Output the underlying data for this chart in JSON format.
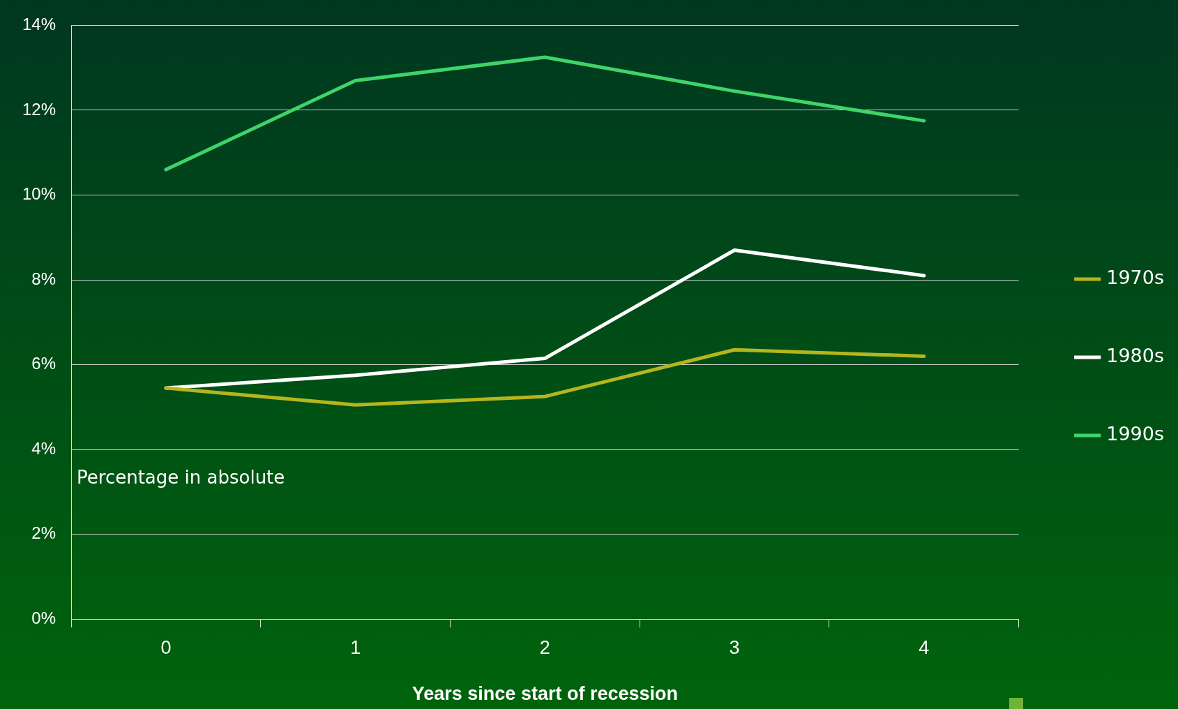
{
  "chart_data": {
    "type": "line",
    "xlabel": "Years since start of recession",
    "ylabel": "Percentage in absolute",
    "categories": [
      "0",
      "1",
      "2",
      "3",
      "4"
    ],
    "series": [
      {
        "name": "1970s",
        "color": "#b5b51e",
        "values": [
          5.45,
          5.05,
          5.25,
          6.35,
          6.2
        ]
      },
      {
        "name": "1980s",
        "color": "#ffffff",
        "values": [
          5.45,
          5.75,
          6.15,
          8.7,
          8.1
        ]
      },
      {
        "name": "1990s",
        "color": "#3fd46a",
        "values": [
          10.6,
          12.7,
          13.25,
          12.45,
          11.75
        ]
      }
    ],
    "ylim": [
      0,
      14
    ],
    "yticks": [
      {
        "value": 0,
        "label": "0%"
      },
      {
        "value": 2,
        "label": "2%"
      },
      {
        "value": 4,
        "label": "4%"
      },
      {
        "value": 6,
        "label": "6%"
      },
      {
        "value": 8,
        "label": "8%"
      },
      {
        "value": 10,
        "label": "10%"
      },
      {
        "value": 12,
        "label": "12%"
      },
      {
        "value": 14,
        "label": "14%"
      }
    ],
    "grid": "y",
    "legend": "right",
    "marker": "none",
    "line_style": "solid"
  }
}
